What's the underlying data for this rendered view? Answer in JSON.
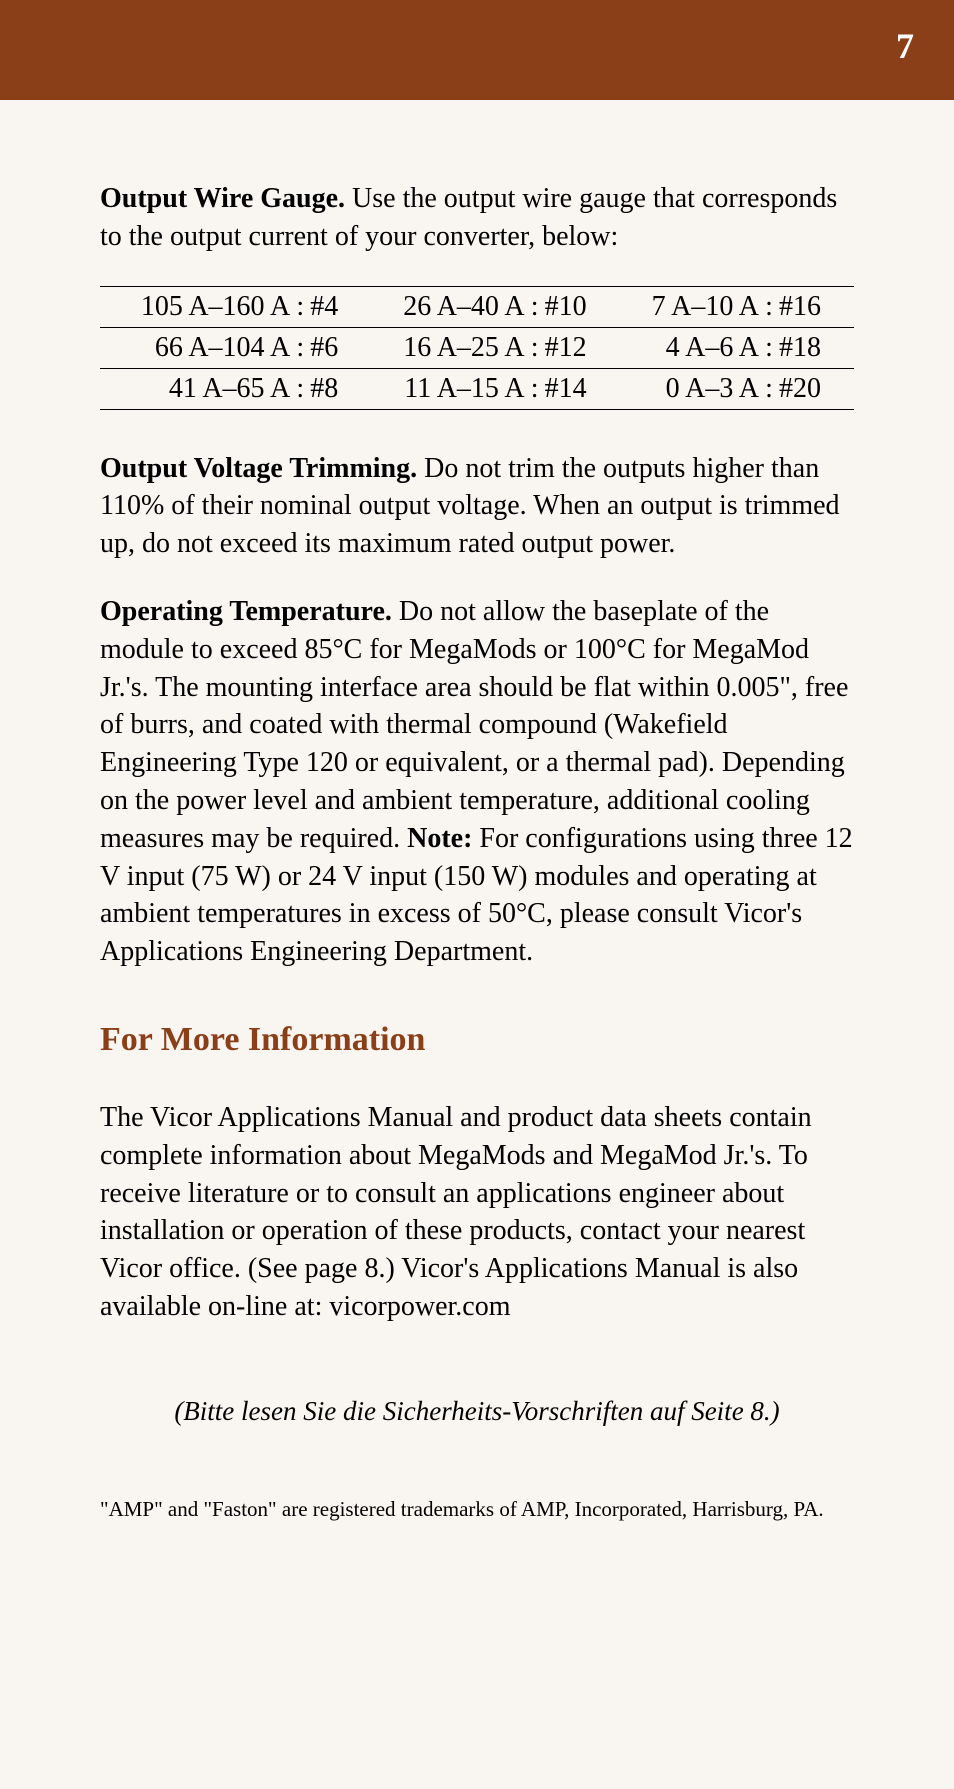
{
  "page_number": "7",
  "intro": {
    "heading": "Output Wire Gauge.",
    "text": " Use the output wire gauge that corresponds to the output current of your converter, below:"
  },
  "wire_table": {
    "rows": [
      [
        {
          "range": "105 A–160 A",
          "gauge": "#4"
        },
        {
          "range": "26 A–40 A",
          "gauge": "#10"
        },
        {
          "range": "7 A–10 A",
          "gauge": "#16"
        }
      ],
      [
        {
          "range": "66 A–104 A",
          "gauge": "#6"
        },
        {
          "range": "16 A–25 A",
          "gauge": "#12"
        },
        {
          "range": "4 A–6 A",
          "gauge": "#18"
        }
      ],
      [
        {
          "range": "41 A–65 A",
          "gauge": "#8"
        },
        {
          "range": "11 A–15 A",
          "gauge": "#14"
        },
        {
          "range": "0 A–3 A",
          "gauge": "#20"
        }
      ]
    ]
  },
  "trimming": {
    "heading": "Output Voltage Trimming.",
    "text": " Do not trim the outputs higher than 110% of their nominal output voltage. When an output is trimmed up, do not exceed its maximum rated output power."
  },
  "temperature": {
    "heading": "Operating Temperature.",
    "text1": " Do not allow the baseplate of the module to exceed 85°C for MegaMods or 100°C for MegaMod Jr.'s. The mounting interface area should be flat within 0.005\", free of burrs, and coated with thermal compound (Wakefield Engineering Type 120 or equivalent, or a thermal pad). Depending on the power level and ambient temperature, additional cooling measures may be required. ",
    "note_label": "Note:",
    "text2": " For configurations using three 12 V input (75 W) or 24 V input (150 W) modules and operating at ambient temperatures in excess of 50°C, please consult Vicor's Applications Engineering Department."
  },
  "more_info": {
    "heading": "For More Information",
    "text": "The Vicor Applications Manual and product data sheets contain complete information about MegaMods and MegaMod Jr.'s. To receive literature or to consult an applications engineer about installation or operation of these products, contact your nearest Vicor office. (See page 8.) Vicor's Applications Manual is also available on-line at: vicorpower.com"
  },
  "german_note": "(Bitte lesen Sie die Sicherheits-Vorschriften auf Seite 8.)",
  "trademark": "\"AMP\" and \"Faston\" are registered trademarks of AMP, Incorporated, Harrisburg, PA.",
  "colors": {
    "header_bg": "#8b3f18",
    "page_bg": "#f9f5f1",
    "heading_color": "#8b3f18"
  }
}
